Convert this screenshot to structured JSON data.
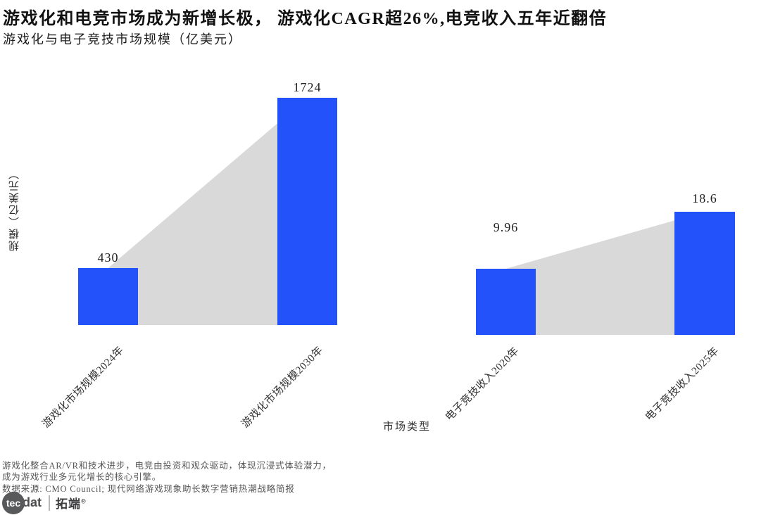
{
  "header": {
    "title": "游戏化和电竞市场成为新增长极， 游戏化CAGR超26%,电竞收入五年近翻倍",
    "subtitle": "游戏化与电子竞技市场规模（亿美元）"
  },
  "chart_data": {
    "type": "bar",
    "title": "游戏化与电子竞技市场规模（亿美元）",
    "xlabel": "市场类型",
    "ylabel": "规模（亿美元）",
    "grid": false,
    "legend": "none",
    "bar_color": "#2452fa",
    "connector_color": "#d9d9d9",
    "groups": [
      {
        "name": "游戏化市场规模",
        "categories": [
          "游戏化市场规模2024年",
          "游戏化市场规模2030年"
        ],
        "values": [
          430,
          1724
        ],
        "labels": [
          "430",
          "1724"
        ]
      },
      {
        "name": "电子竞技收入",
        "categories": [
          "电子竞技收入2020年",
          "电子竞技收入2025年"
        ],
        "values": [
          9.96,
          18.6
        ],
        "labels": [
          "9.96",
          "18.6"
        ]
      }
    ]
  },
  "footer": {
    "note_line1": "游戏化整合AR/VR和技术进步，电竞由投资和观众驱动，体现沉浸式体验潜力，",
    "note_line2": "成为游戏行业多元化增长的核心引擎。",
    "source": "数据来源: CMO Council; 现代网络游戏现象助长数字营销热潮战略简报",
    "logo": {
      "circle_text": "tec",
      "suffix_text": "dat",
      "brand": "拓端",
      "reg": "®"
    }
  }
}
